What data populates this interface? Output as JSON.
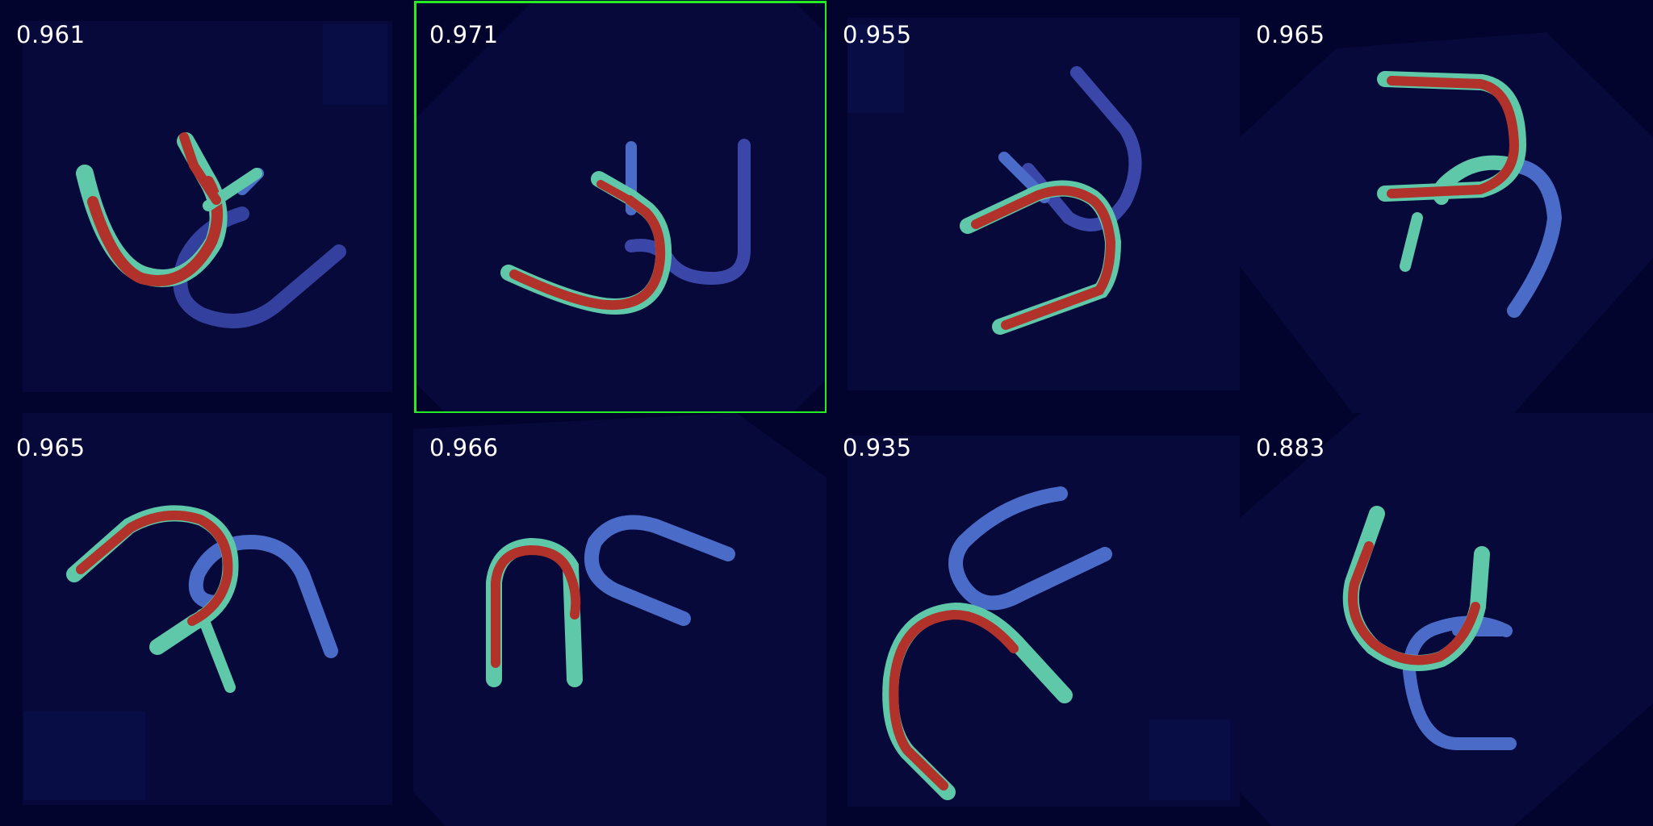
{
  "tiles": [
    {
      "score": "0.961"
    },
    {
      "score": "0.971",
      "selected": true
    },
    {
      "score": "0.955"
    },
    {
      "score": "0.965"
    },
    {
      "score": "0.965"
    },
    {
      "score": "0.966"
    },
    {
      "score": "0.935"
    },
    {
      "score": "0.883"
    }
  ],
  "colors": {
    "background": "#03042d",
    "selected_border": "#22ee22",
    "heat_hot": "#b0322a",
    "heat_mid": "#5ec8a8",
    "heat_cold": "#4e5cc8",
    "score_text": "#ffffff"
  }
}
